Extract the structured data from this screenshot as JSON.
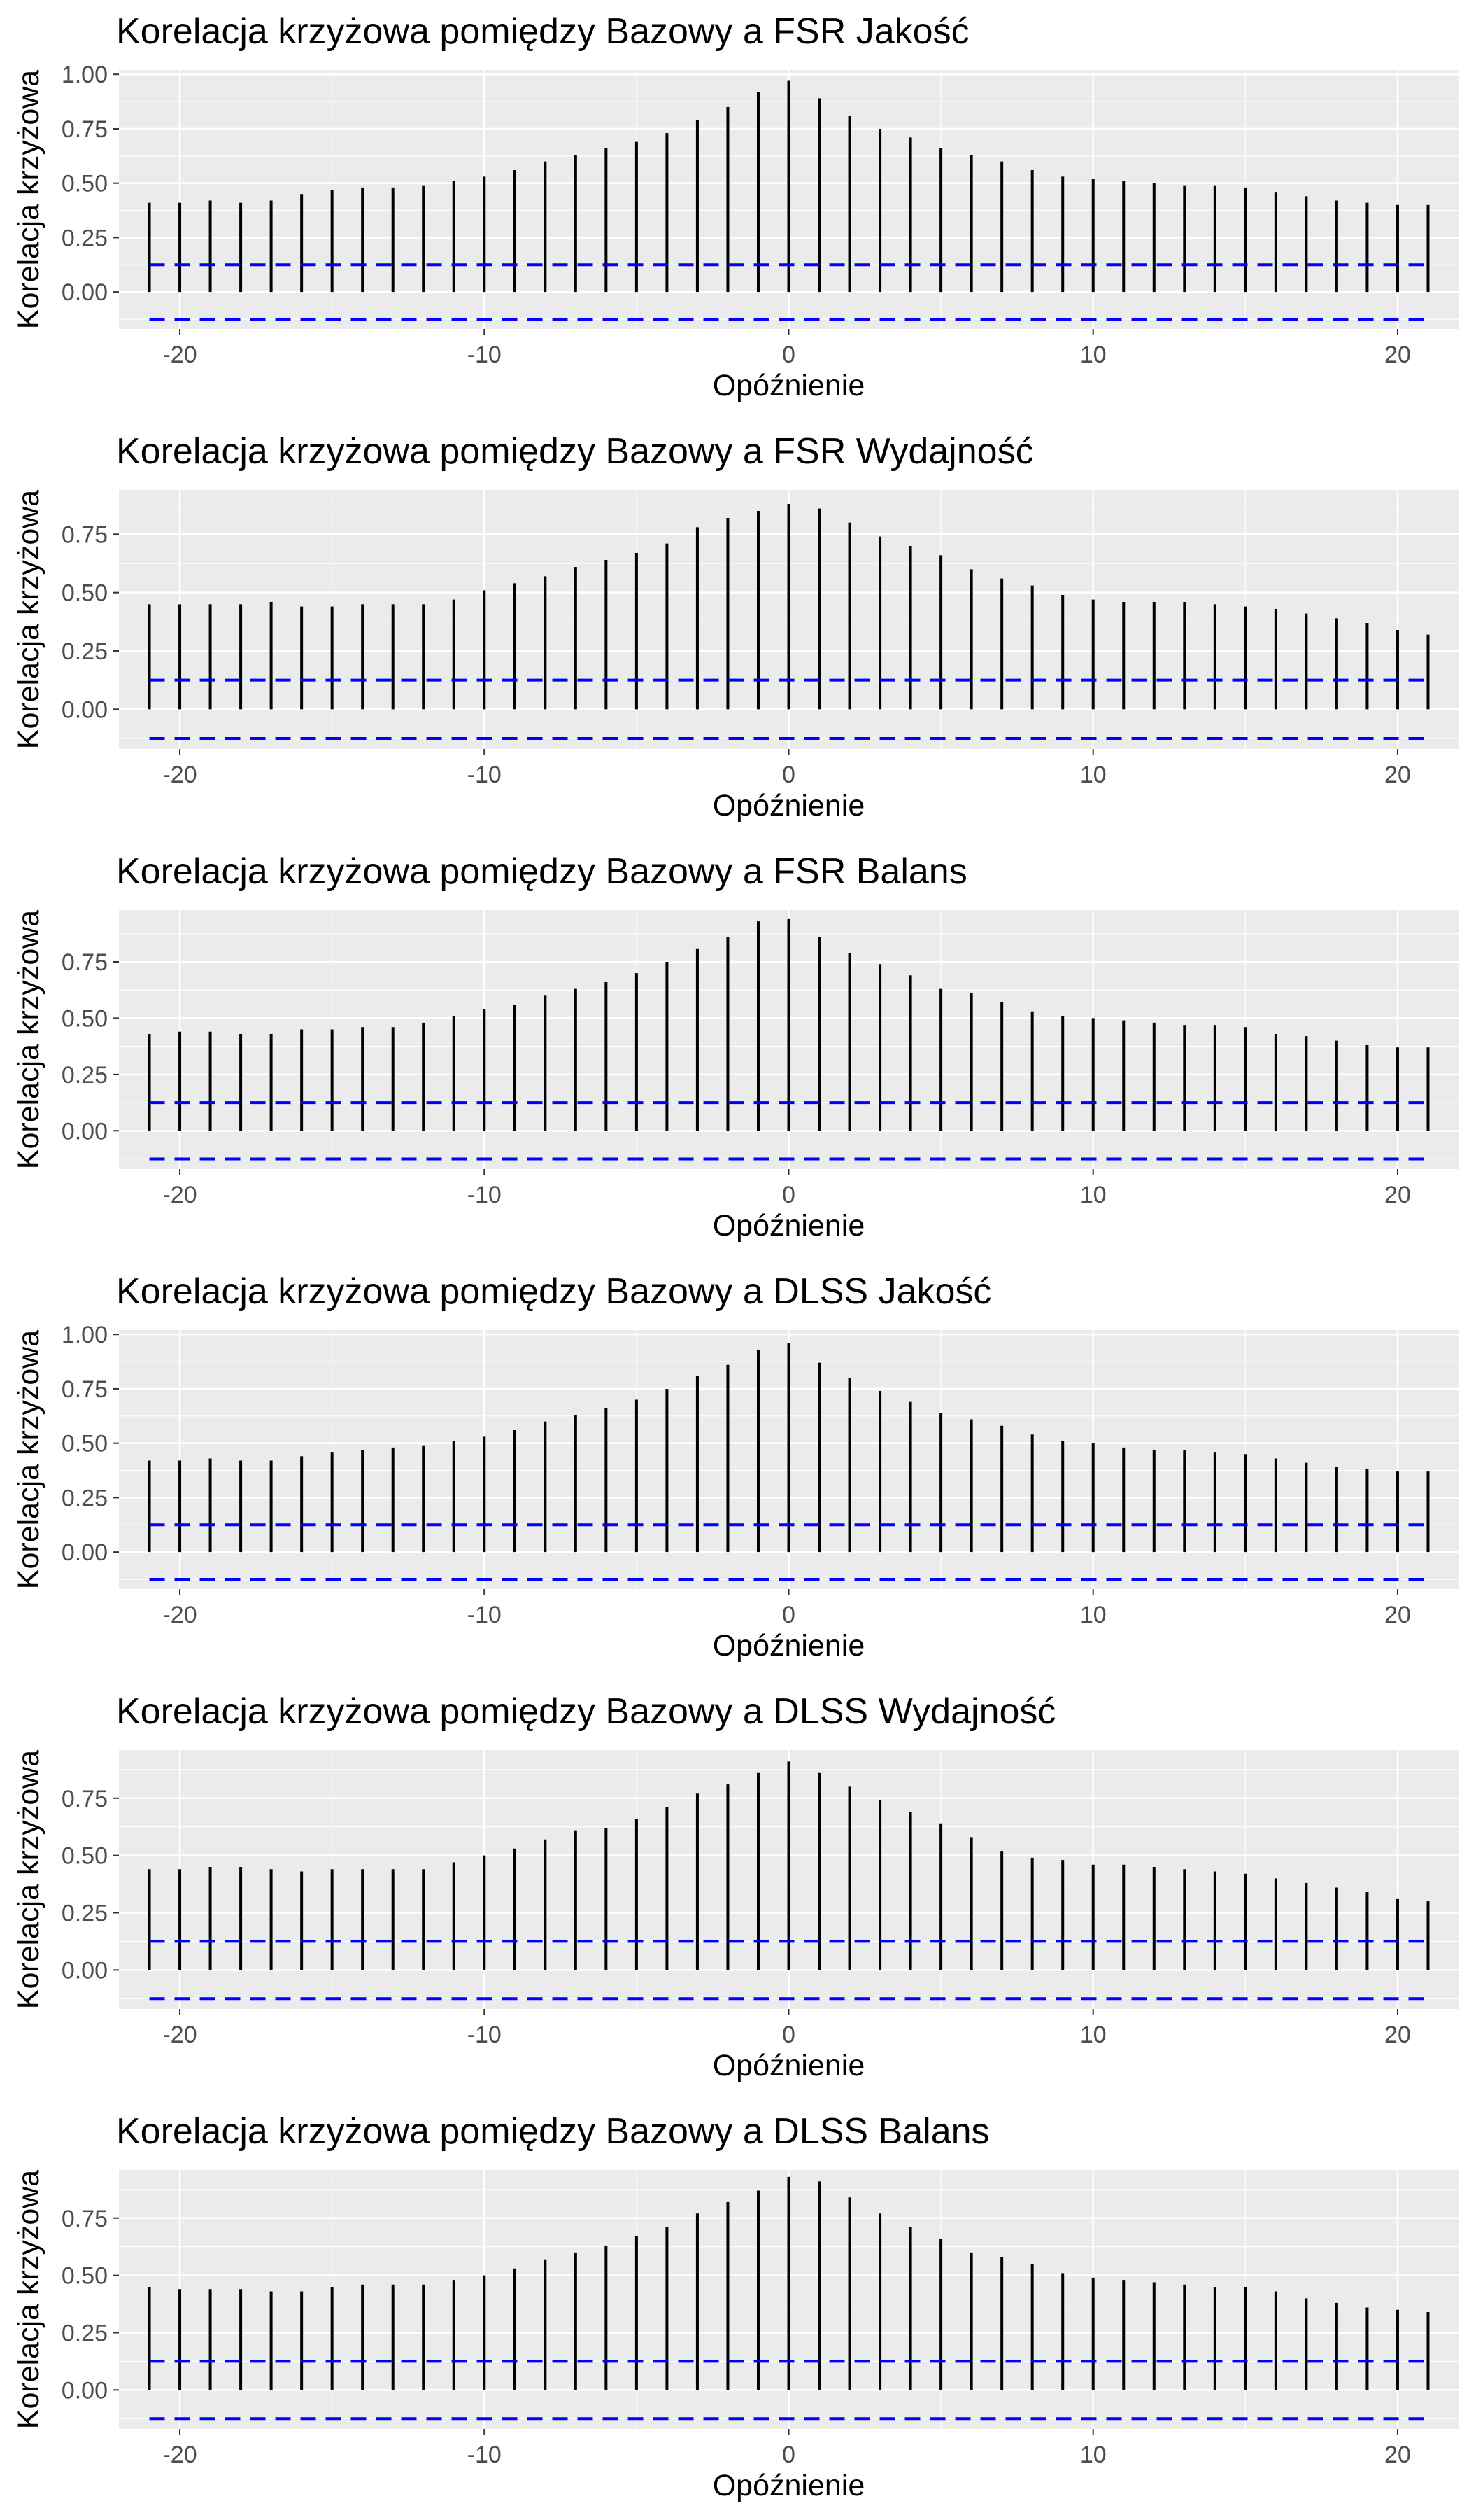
{
  "chart_data": [
    {
      "type": "bar",
      "title": "Korelacja krzyżowa pomiędzy Bazowy a FSR Jakość",
      "xlabel": "Opóźnienie",
      "ylabel": "Korelacja krzyżowa",
      "xlim": [
        -22,
        22
      ],
      "ylim": [
        -0.17,
        1.02
      ],
      "x_ticks": [
        -20,
        -10,
        0,
        10,
        20
      ],
      "y_ticks": [
        0,
        0.25,
        0.5,
        0.75,
        1.0
      ],
      "x_tick_labels": [
        "-20",
        "-10",
        "0",
        "10",
        "20"
      ],
      "y_tick_labels": [
        "0.00",
        "0.25",
        "0.50",
        "0.75",
        "1.00"
      ],
      "conf_bound": 0.125,
      "grid": true,
      "x": [
        -21,
        -20,
        -19,
        -18,
        -17,
        -16,
        -15,
        -14,
        -13,
        -12,
        -11,
        -10,
        -9,
        -8,
        -7,
        -6,
        -5,
        -4,
        -3,
        -2,
        -1,
        0,
        1,
        2,
        3,
        4,
        5,
        6,
        7,
        8,
        9,
        10,
        11,
        12,
        13,
        14,
        15,
        16,
        17,
        18,
        19,
        20,
        21
      ],
      "values": [
        0.41,
        0.41,
        0.42,
        0.41,
        0.42,
        0.45,
        0.47,
        0.48,
        0.48,
        0.49,
        0.51,
        0.53,
        0.56,
        0.6,
        0.63,
        0.66,
        0.69,
        0.73,
        0.79,
        0.85,
        0.92,
        0.97,
        0.89,
        0.81,
        0.75,
        0.71,
        0.66,
        0.63,
        0.6,
        0.56,
        0.53,
        0.52,
        0.51,
        0.5,
        0.49,
        0.49,
        0.48,
        0.46,
        0.44,
        0.42,
        0.41,
        0.4,
        0.4
      ]
    },
    {
      "type": "bar",
      "title": "Korelacja krzyżowa pomiędzy Bazowy a FSR Wydajność",
      "xlabel": "Opóźnienie",
      "ylabel": "Korelacja krzyżowa",
      "xlim": [
        -22,
        22
      ],
      "ylim": [
        -0.17,
        0.94
      ],
      "x_ticks": [
        -20,
        -10,
        0,
        10,
        20
      ],
      "y_ticks": [
        0,
        0.25,
        0.5,
        0.75
      ],
      "x_tick_labels": [
        "-20",
        "-10",
        "0",
        "10",
        "20"
      ],
      "y_tick_labels": [
        "0.00",
        "0.25",
        "0.50",
        "0.75"
      ],
      "conf_bound": 0.125,
      "grid": true,
      "x": [
        -21,
        -20,
        -19,
        -18,
        -17,
        -16,
        -15,
        -14,
        -13,
        -12,
        -11,
        -10,
        -9,
        -8,
        -7,
        -6,
        -5,
        -4,
        -3,
        -2,
        -1,
        0,
        1,
        2,
        3,
        4,
        5,
        6,
        7,
        8,
        9,
        10,
        11,
        12,
        13,
        14,
        15,
        16,
        17,
        18,
        19,
        20,
        21
      ],
      "values": [
        0.45,
        0.45,
        0.45,
        0.45,
        0.46,
        0.44,
        0.44,
        0.45,
        0.45,
        0.45,
        0.47,
        0.51,
        0.54,
        0.57,
        0.61,
        0.64,
        0.67,
        0.71,
        0.78,
        0.82,
        0.85,
        0.88,
        0.86,
        0.8,
        0.74,
        0.7,
        0.66,
        0.6,
        0.56,
        0.53,
        0.49,
        0.47,
        0.46,
        0.46,
        0.46,
        0.45,
        0.44,
        0.43,
        0.41,
        0.39,
        0.37,
        0.34,
        0.32
      ]
    },
    {
      "type": "bar",
      "title": "Korelacja krzyżowa pomiędzy Bazowy a FSR Balans",
      "xlabel": "Opóźnienie",
      "ylabel": "Korelacja krzyżowa",
      "xlim": [
        -22,
        22
      ],
      "ylim": [
        -0.17,
        0.98
      ],
      "x_ticks": [
        -20,
        -10,
        0,
        10,
        20
      ],
      "y_ticks": [
        0,
        0.25,
        0.5,
        0.75
      ],
      "x_tick_labels": [
        "-20",
        "-10",
        "0",
        "10",
        "20"
      ],
      "y_tick_labels": [
        "0.00",
        "0.25",
        "0.50",
        "0.75"
      ],
      "conf_bound": 0.125,
      "grid": true,
      "x": [
        -21,
        -20,
        -19,
        -18,
        -17,
        -16,
        -15,
        -14,
        -13,
        -12,
        -11,
        -10,
        -9,
        -8,
        -7,
        -6,
        -5,
        -4,
        -3,
        -2,
        -1,
        0,
        1,
        2,
        3,
        4,
        5,
        6,
        7,
        8,
        9,
        10,
        11,
        12,
        13,
        14,
        15,
        16,
        17,
        18,
        19,
        20,
        21
      ],
      "values": [
        0.43,
        0.44,
        0.44,
        0.43,
        0.43,
        0.45,
        0.45,
        0.46,
        0.46,
        0.48,
        0.51,
        0.54,
        0.56,
        0.6,
        0.63,
        0.66,
        0.7,
        0.75,
        0.81,
        0.86,
        0.93,
        0.94,
        0.86,
        0.79,
        0.74,
        0.69,
        0.63,
        0.61,
        0.57,
        0.53,
        0.51,
        0.5,
        0.49,
        0.48,
        0.47,
        0.47,
        0.46,
        0.43,
        0.42,
        0.4,
        0.38,
        0.37,
        0.37
      ]
    },
    {
      "type": "bar",
      "title": "Korelacja krzyżowa pomiędzy Bazowy a DLSS Jakość",
      "xlabel": "Opóźnienie",
      "ylabel": "Korelacja krzyżowa",
      "xlim": [
        -22,
        22
      ],
      "ylim": [
        -0.17,
        1.02
      ],
      "x_ticks": [
        -20,
        -10,
        0,
        10,
        20
      ],
      "y_ticks": [
        0,
        0.25,
        0.5,
        0.75,
        1.0
      ],
      "x_tick_labels": [
        "-20",
        "-10",
        "0",
        "10",
        "20"
      ],
      "y_tick_labels": [
        "0.00",
        "0.25",
        "0.50",
        "0.75",
        "1.00"
      ],
      "conf_bound": 0.125,
      "grid": true,
      "x": [
        -21,
        -20,
        -19,
        -18,
        -17,
        -16,
        -15,
        -14,
        -13,
        -12,
        -11,
        -10,
        -9,
        -8,
        -7,
        -6,
        -5,
        -4,
        -3,
        -2,
        -1,
        0,
        1,
        2,
        3,
        4,
        5,
        6,
        7,
        8,
        9,
        10,
        11,
        12,
        13,
        14,
        15,
        16,
        17,
        18,
        19,
        20,
        21
      ],
      "values": [
        0.42,
        0.42,
        0.43,
        0.42,
        0.42,
        0.44,
        0.46,
        0.47,
        0.48,
        0.49,
        0.51,
        0.53,
        0.56,
        0.6,
        0.63,
        0.66,
        0.7,
        0.75,
        0.81,
        0.86,
        0.93,
        0.96,
        0.87,
        0.8,
        0.74,
        0.69,
        0.64,
        0.61,
        0.58,
        0.54,
        0.51,
        0.5,
        0.48,
        0.47,
        0.47,
        0.46,
        0.45,
        0.43,
        0.41,
        0.39,
        0.38,
        0.37,
        0.37
      ]
    },
    {
      "type": "bar",
      "title": "Korelacja krzyżowa pomiędzy Bazowy a DLSS Wydajność",
      "xlabel": "Opóźnienie",
      "ylabel": "Korelacja krzyżowa",
      "xlim": [
        -22,
        22
      ],
      "ylim": [
        -0.17,
        0.96
      ],
      "x_ticks": [
        -20,
        -10,
        0,
        10,
        20
      ],
      "y_ticks": [
        0,
        0.25,
        0.5,
        0.75
      ],
      "x_tick_labels": [
        "-20",
        "-10",
        "0",
        "10",
        "20"
      ],
      "y_tick_labels": [
        "0.00",
        "0.25",
        "0.50",
        "0.75"
      ],
      "conf_bound": 0.125,
      "grid": true,
      "x": [
        -21,
        -20,
        -19,
        -18,
        -17,
        -16,
        -15,
        -14,
        -13,
        -12,
        -11,
        -10,
        -9,
        -8,
        -7,
        -6,
        -5,
        -4,
        -3,
        -2,
        -1,
        0,
        1,
        2,
        3,
        4,
        5,
        6,
        7,
        8,
        9,
        10,
        11,
        12,
        13,
        14,
        15,
        16,
        17,
        18,
        19,
        20,
        21
      ],
      "values": [
        0.44,
        0.44,
        0.45,
        0.45,
        0.44,
        0.43,
        0.44,
        0.44,
        0.44,
        0.44,
        0.47,
        0.5,
        0.53,
        0.57,
        0.61,
        0.62,
        0.66,
        0.71,
        0.77,
        0.81,
        0.86,
        0.91,
        0.86,
        0.8,
        0.74,
        0.69,
        0.64,
        0.58,
        0.52,
        0.49,
        0.48,
        0.46,
        0.46,
        0.45,
        0.44,
        0.43,
        0.42,
        0.4,
        0.38,
        0.36,
        0.34,
        0.31,
        0.3
      ]
    },
    {
      "type": "bar",
      "title": "Korelacja krzyżowa pomiędzy Bazowy a DLSS Balans",
      "xlabel": "Opóźnienie",
      "ylabel": "Korelacja krzyżowa",
      "xlim": [
        -22,
        22
      ],
      "ylim": [
        -0.17,
        0.96
      ],
      "x_ticks": [
        -20,
        -10,
        0,
        10,
        20
      ],
      "y_ticks": [
        0,
        0.25,
        0.5,
        0.75
      ],
      "x_tick_labels": [
        "-20",
        "-10",
        "0",
        "10",
        "20"
      ],
      "y_tick_labels": [
        "0.00",
        "0.25",
        "0.50",
        "0.75"
      ],
      "conf_bound": 0.125,
      "grid": true,
      "x": [
        -21,
        -20,
        -19,
        -18,
        -17,
        -16,
        -15,
        -14,
        -13,
        -12,
        -11,
        -10,
        -9,
        -8,
        -7,
        -6,
        -5,
        -4,
        -3,
        -2,
        -1,
        0,
        1,
        2,
        3,
        4,
        5,
        6,
        7,
        8,
        9,
        10,
        11,
        12,
        13,
        14,
        15,
        16,
        17,
        18,
        19,
        20,
        21
      ],
      "values": [
        0.45,
        0.44,
        0.44,
        0.44,
        0.43,
        0.43,
        0.45,
        0.46,
        0.46,
        0.46,
        0.48,
        0.5,
        0.53,
        0.57,
        0.6,
        0.63,
        0.67,
        0.71,
        0.77,
        0.82,
        0.87,
        0.93,
        0.91,
        0.84,
        0.77,
        0.71,
        0.66,
        0.6,
        0.58,
        0.55,
        0.51,
        0.49,
        0.48,
        0.47,
        0.46,
        0.45,
        0.45,
        0.43,
        0.4,
        0.38,
        0.36,
        0.35,
        0.34
      ]
    }
  ],
  "colors": {
    "panel_background": "#ebebeb",
    "grid_major": "#ffffff",
    "spike": "#000000",
    "confidence_line": "#0000ff",
    "tick_text": "#4d4d4d",
    "tick_mark": "#333333"
  }
}
